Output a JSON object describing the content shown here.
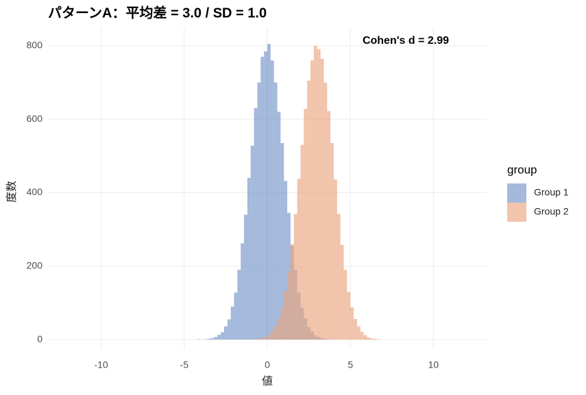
{
  "chart_data": {
    "type": "histogram",
    "title": "パターンA：平均差 = 3.0 / SD = 1.0",
    "annotation": "Cohen's d = 2.99",
    "x_label": "値",
    "y_label": "度数",
    "legend_title": "group",
    "legend_position": "right",
    "bins": [
      -4.4,
      -4.2,
      -4.0,
      -3.8,
      -3.6,
      -3.4,
      -3.2,
      -3.0,
      -2.8,
      -2.6,
      -2.4,
      -2.2,
      -2.0,
      -1.8,
      -1.6,
      -1.4,
      -1.2,
      -1.0,
      -0.8,
      -0.6,
      -0.4,
      -0.2,
      0,
      0.2,
      0.4,
      0.6,
      0.8,
      1.0,
      1.2,
      1.4,
      1.6,
      1.8,
      2.0,
      2.2,
      2.4,
      2.6,
      2.8,
      3.0,
      3.2,
      3.4,
      3.6,
      3.8,
      4.0,
      4.2,
      4.4,
      4.6,
      4.8,
      5.0,
      5.2,
      5.4,
      5.6,
      5.8,
      6.0,
      6.2,
      6.4,
      6.6,
      6.8,
      7.0
    ],
    "series": [
      {
        "name": "Group 1",
        "color": "#7393c7",
        "values": [
          0,
          1,
          0,
          1,
          2,
          4,
          7,
          13,
          20,
          36,
          55,
          90,
          128,
          190,
          262,
          340,
          440,
          528,
          630,
          700,
          770,
          785,
          805,
          760,
          700,
          620,
          535,
          432,
          345,
          255,
          190,
          128,
          87,
          58,
          34,
          22,
          11,
          7,
          3,
          2,
          1,
          0,
          0,
          0,
          0,
          0,
          0,
          0,
          0,
          0,
          0,
          0,
          0,
          0,
          0,
          0,
          0
        ]
      },
      {
        "name": "Group 2",
        "color": "#e9a47e",
        "values": [
          0,
          0,
          0,
          0,
          0,
          0,
          0,
          0,
          0,
          0,
          0,
          0,
          0,
          0,
          0,
          0,
          0,
          0,
          1,
          2,
          3,
          7,
          12,
          21,
          35,
          57,
          88,
          132,
          186,
          260,
          342,
          438,
          530,
          628,
          705,
          760,
          800,
          790,
          765,
          700,
          622,
          535,
          436,
          342,
          258,
          190,
          130,
          88,
          56,
          36,
          21,
          12,
          6,
          3,
          2,
          1,
          0
        ]
      }
    ],
    "alpha": 0.65,
    "xlim": [
      -13.2,
      13.2
    ],
    "xticks": [
      -10,
      -5,
      0,
      5,
      10
    ],
    "ylim": [
      -26,
      850
    ],
    "yticks": [
      0,
      200,
      400,
      600,
      800
    ],
    "grid": true
  }
}
